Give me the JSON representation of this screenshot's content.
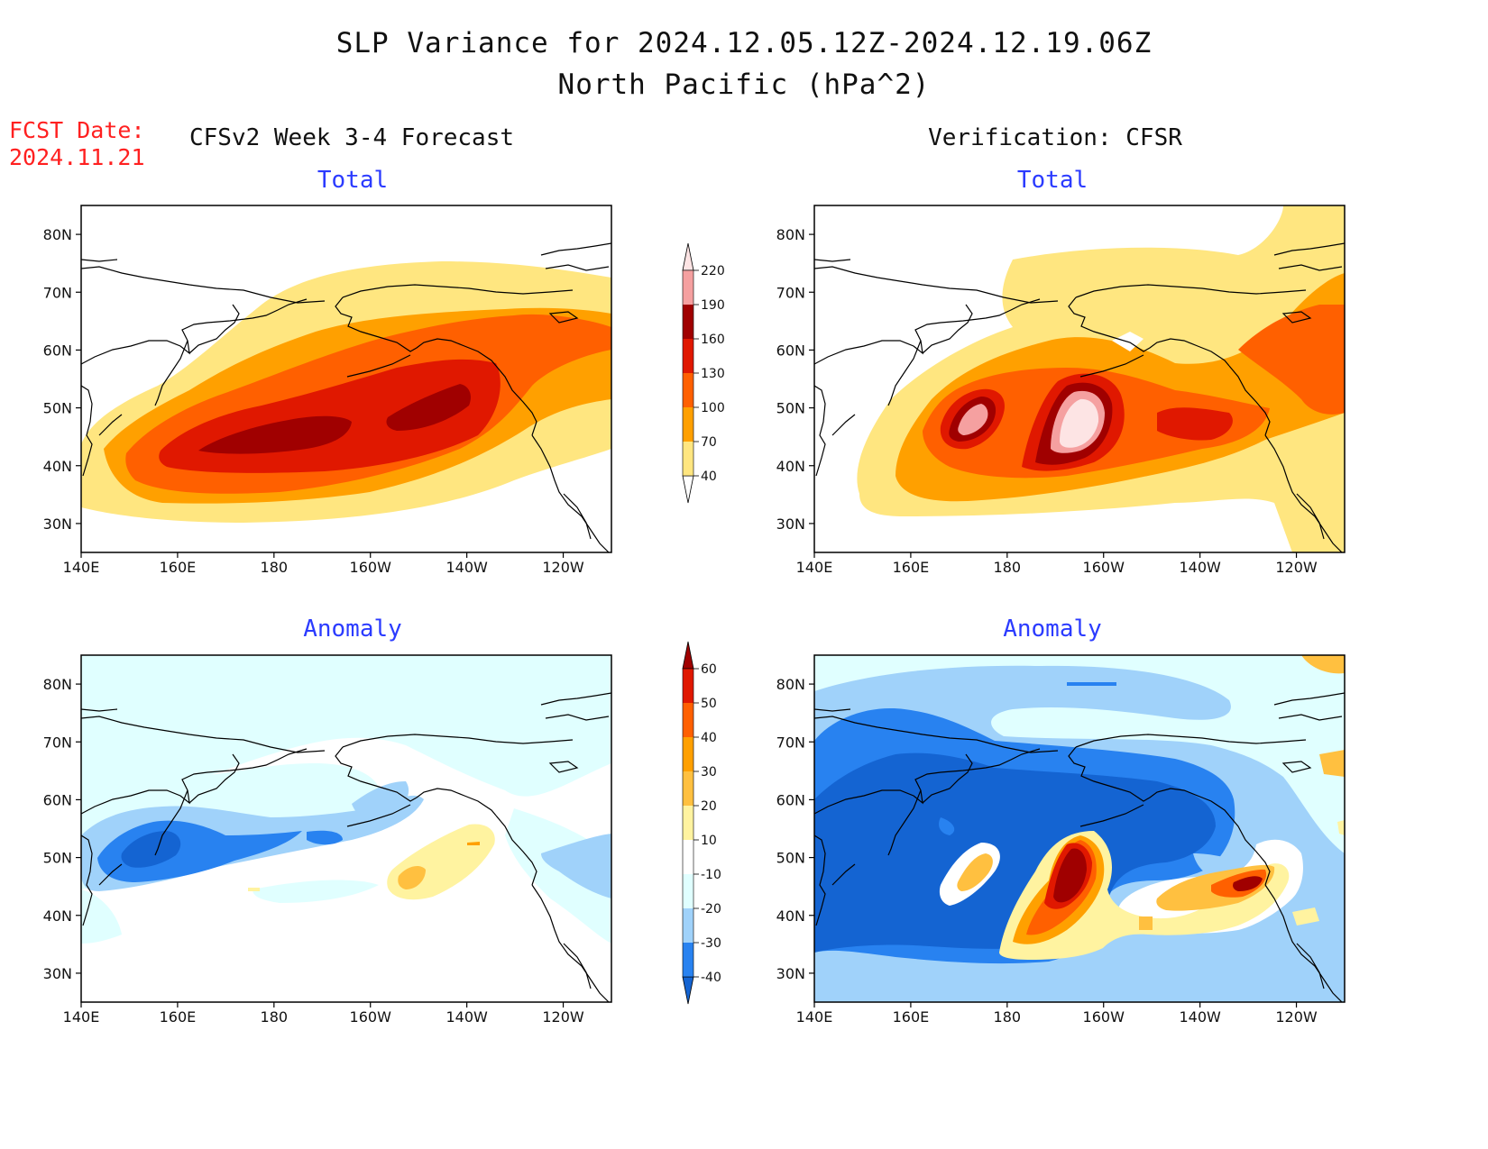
{
  "header": {
    "title_line1": "SLP Variance for 2024.12.05.12Z-2024.12.19.06Z",
    "title_line2": "North Pacific (hPa^2)",
    "fcst_label": "FCST Date:",
    "fcst_date": "2024.11.21",
    "left_column": "CFSv2 Week 3-4 Forecast",
    "right_column": "Verification: CFSR"
  },
  "panels": {
    "tl_title": "Total",
    "tr_title": "Total",
    "bl_title": "Anomaly",
    "br_title": "Anomaly"
  },
  "axes": {
    "lat_labels": [
      "80N",
      "70N",
      "60N",
      "50N",
      "40N",
      "30N"
    ],
    "lat_values": [
      80,
      70,
      60,
      50,
      40,
      30
    ],
    "lon_labels": [
      "140E",
      "160E",
      "180",
      "160W",
      "140W",
      "120W"
    ],
    "lon_values": [
      140,
      160,
      180,
      200,
      220,
      240
    ],
    "lon_range": [
      140,
      250
    ],
    "lat_range": [
      25,
      85
    ]
  },
  "colorbars": {
    "total": {
      "levels": [
        "40",
        "70",
        "100",
        "130",
        "160",
        "190",
        "220"
      ],
      "colors": [
        "#ffffff",
        "#ffe680",
        "#ffa000",
        "#ff6000",
        "#e01800",
        "#a00000",
        "#f5a0a0",
        "#fde4e4"
      ]
    },
    "anomaly": {
      "levels": [
        "-40",
        "-30",
        "-20",
        "-10",
        "10",
        "20",
        "30",
        "40",
        "50",
        "60"
      ],
      "colors": [
        "#1464d2",
        "#2882f0",
        "#a0d2fa",
        "#e0ffff",
        "#ffffff",
        "#fff3a0",
        "#ffc040",
        "#ffa000",
        "#ff6000",
        "#e01800",
        "#a00000"
      ]
    }
  },
  "colors": {
    "title_red": "#ff2020",
    "panel_title_blue": "#2b3bff"
  }
}
